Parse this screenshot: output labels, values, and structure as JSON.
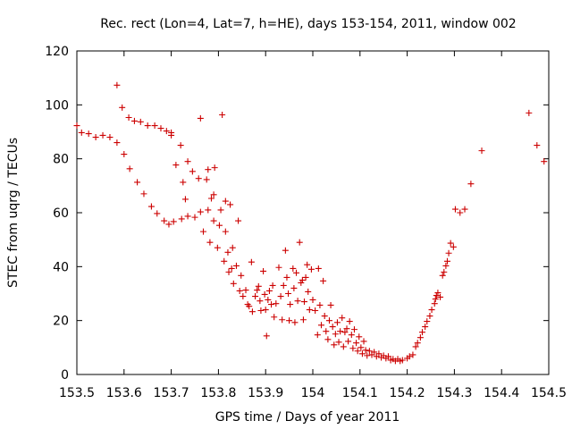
{
  "chart_data": {
    "type": "scatter",
    "title": "Rec. rect (Lon=4, Lat=7, h=HE), days 153-154, 2011, window 002",
    "xlabel": "GPS time / Days of year 2011",
    "ylabel": "STEC from uqrg / TECUs",
    "xlim": [
      153.5,
      154.5
    ],
    "ylim": [
      0,
      120
    ],
    "x_ticks": [
      153.5,
      153.6,
      153.7,
      153.8,
      153.9,
      154.0,
      154.1,
      154.2,
      154.3,
      154.4,
      154.5
    ],
    "x_tick_labels": [
      "153.5",
      "153.6",
      "153.7",
      "153.8",
      "153.9",
      "154",
      "154.1",
      "154.2",
      "154.3",
      "154.4",
      "154.5"
    ],
    "y_ticks": [
      0,
      20,
      40,
      60,
      80,
      100,
      120
    ],
    "y_tick_labels": [
      "0",
      "20",
      "40",
      "60",
      "80",
      "100",
      "120"
    ],
    "grid": false,
    "legend": "none",
    "marker": "+",
    "color": "#cc0000",
    "series": [
      {
        "points": [
          [
            153.5,
            92.3
          ],
          [
            153.51,
            89.7
          ],
          [
            153.525,
            89.3
          ],
          [
            153.54,
            88.0
          ],
          [
            153.555,
            88.7
          ],
          [
            153.57,
            88.0
          ],
          [
            153.585,
            86.0
          ],
          [
            153.6,
            81.7
          ],
          [
            153.612,
            76.3
          ],
          [
            153.628,
            71.3
          ],
          [
            153.642,
            67.0
          ],
          [
            153.658,
            62.3
          ],
          [
            153.67,
            59.7
          ],
          [
            153.685,
            57.0
          ],
          [
            153.695,
            55.7
          ],
          [
            153.705,
            56.7
          ],
          [
            153.722,
            57.7
          ],
          [
            153.735,
            58.7
          ],
          [
            153.75,
            58.3
          ],
          [
            153.762,
            60.3
          ],
          [
            153.778,
            61.0
          ],
          [
            153.79,
            57.0
          ],
          [
            153.802,
            55.3
          ],
          [
            153.815,
            53.0
          ],
          [
            153.585,
            107.3
          ],
          [
            153.596,
            99.0
          ],
          [
            153.61,
            95.3
          ],
          [
            153.622,
            94.0
          ],
          [
            153.635,
            93.7
          ],
          [
            153.65,
            92.3
          ],
          [
            153.665,
            92.3
          ],
          [
            153.678,
            91.3
          ],
          [
            153.69,
            90.3
          ],
          [
            153.7,
            88.7
          ],
          [
            153.7,
            89.7
          ],
          [
            153.71,
            77.7
          ],
          [
            153.72,
            85.0
          ],
          [
            153.725,
            71.3
          ],
          [
            153.73,
            65.0
          ],
          [
            153.735,
            79.0
          ],
          [
            153.745,
            75.3
          ],
          [
            153.758,
            72.7
          ],
          [
            153.762,
            95.0
          ],
          [
            153.768,
            53.0
          ],
          [
            153.775,
            72.3
          ],
          [
            153.778,
            76.0
          ],
          [
            153.782,
            49.0
          ],
          [
            153.785,
            65.3
          ],
          [
            153.79,
            66.7
          ],
          [
            153.792,
            76.7
          ],
          [
            153.798,
            47.0
          ],
          [
            153.805,
            61.0
          ],
          [
            153.808,
            96.3
          ],
          [
            153.812,
            42.0
          ],
          [
            153.815,
            64.3
          ],
          [
            153.82,
            45.3
          ],
          [
            153.822,
            38.0
          ],
          [
            153.825,
            63.0
          ],
          [
            153.828,
            39.3
          ],
          [
            153.83,
            47.0
          ],
          [
            153.832,
            33.7
          ],
          [
            153.838,
            40.3
          ],
          [
            153.842,
            57.0
          ],
          [
            153.845,
            31.0
          ],
          [
            153.848,
            36.7
          ],
          [
            153.852,
            29.0
          ],
          [
            153.858,
            31.3
          ],
          [
            153.862,
            26.0
          ],
          [
            153.865,
            25.3
          ],
          [
            153.87,
            41.7
          ],
          [
            153.872,
            23.3
          ],
          [
            153.878,
            29.0
          ],
          [
            153.882,
            31.3
          ],
          [
            153.885,
            32.7
          ],
          [
            153.888,
            27.3
          ],
          [
            153.89,
            23.7
          ],
          [
            153.895,
            38.3
          ],
          [
            153.898,
            29.7
          ],
          [
            153.9,
            24.0
          ],
          [
            153.902,
            14.3
          ],
          [
            153.905,
            27.7
          ],
          [
            153.908,
            31.0
          ],
          [
            153.912,
            26.0
          ],
          [
            153.915,
            33.0
          ],
          [
            153.918,
            21.3
          ],
          [
            153.922,
            26.3
          ],
          [
            153.928,
            39.7
          ],
          [
            153.932,
            29.0
          ],
          [
            153.935,
            20.3
          ],
          [
            153.938,
            33.0
          ],
          [
            153.942,
            46.0
          ],
          [
            153.945,
            36.0
          ],
          [
            153.948,
            30.0
          ],
          [
            153.95,
            20.0
          ],
          [
            153.952,
            26.0
          ],
          [
            153.958,
            39.3
          ],
          [
            153.96,
            32.0
          ],
          [
            153.962,
            19.3
          ],
          [
            153.965,
            37.7
          ],
          [
            153.968,
            27.3
          ],
          [
            153.972,
            49.0
          ],
          [
            153.975,
            34.0
          ],
          [
            153.978,
            35.0
          ],
          [
            153.98,
            20.3
          ],
          [
            153.982,
            27.0
          ],
          [
            153.985,
            36.0
          ],
          [
            153.988,
            40.7
          ],
          [
            153.99,
            30.7
          ],
          [
            153.993,
            24.0
          ],
          [
            153.997,
            39.0
          ],
          [
            154.0,
            27.7
          ],
          [
            154.005,
            23.7
          ],
          [
            154.01,
            14.7
          ],
          [
            154.012,
            39.3
          ],
          [
            154.015,
            25.7
          ],
          [
            154.018,
            18.3
          ],
          [
            154.022,
            34.7
          ],
          [
            154.025,
            21.7
          ],
          [
            154.028,
            16.0
          ],
          [
            154.032,
            13.0
          ],
          [
            154.035,
            20.0
          ],
          [
            154.038,
            25.7
          ],
          [
            154.042,
            17.7
          ],
          [
            154.045,
            11.0
          ],
          [
            154.048,
            15.0
          ],
          [
            154.052,
            19.3
          ],
          [
            154.055,
            12.0
          ],
          [
            154.058,
            16.0
          ],
          [
            154.062,
            21.0
          ],
          [
            154.065,
            10.3
          ],
          [
            154.068,
            15.7
          ],
          [
            154.072,
            17.0
          ],
          [
            154.075,
            12.3
          ],
          [
            154.078,
            19.7
          ],
          [
            154.082,
            14.7
          ],
          [
            154.085,
            9.7
          ],
          [
            154.088,
            16.7
          ],
          [
            154.092,
            11.7
          ],
          [
            154.095,
            8.7
          ],
          [
            154.098,
            14.0
          ],
          [
            154.102,
            10.0
          ],
          [
            154.105,
            7.7
          ],
          [
            154.108,
            12.3
          ],
          [
            154.112,
            9.0
          ],
          [
            154.115,
            7.0
          ],
          [
            154.12,
            8.7
          ],
          [
            154.125,
            7.3
          ],
          [
            154.13,
            8.3
          ],
          [
            154.135,
            6.7
          ],
          [
            154.14,
            7.7
          ],
          [
            154.145,
            6.3
          ],
          [
            154.15,
            7.0
          ],
          [
            154.155,
            6.0
          ],
          [
            154.16,
            6.7
          ],
          [
            154.165,
            5.3
          ],
          [
            154.17,
            5.7
          ],
          [
            154.175,
            5.0
          ],
          [
            154.18,
            5.7
          ],
          [
            154.185,
            5.0
          ],
          [
            154.19,
            5.3
          ],
          [
            154.2,
            6.0
          ],
          [
            154.205,
            6.7
          ],
          [
            154.212,
            7.3
          ],
          [
            154.218,
            10.3
          ],
          [
            154.222,
            11.7
          ],
          [
            154.228,
            13.7
          ],
          [
            154.232,
            15.7
          ],
          [
            154.238,
            17.7
          ],
          [
            154.242,
            19.7
          ],
          [
            154.248,
            21.7
          ],
          [
            154.252,
            24.0
          ],
          [
            154.258,
            26.3
          ],
          [
            154.26,
            28.0
          ],
          [
            154.262,
            29.3
          ],
          [
            154.265,
            30.3
          ],
          [
            154.27,
            28.7
          ],
          [
            154.275,
            36.7
          ],
          [
            154.278,
            38.0
          ],
          [
            154.282,
            40.3
          ],
          [
            154.285,
            42.0
          ],
          [
            154.288,
            45.0
          ],
          [
            154.292,
            48.7
          ],
          [
            154.298,
            47.3
          ],
          [
            154.302,
            61.3
          ],
          [
            154.312,
            60.0
          ],
          [
            154.322,
            61.3
          ],
          [
            154.335,
            70.7
          ],
          [
            154.358,
            83.0
          ],
          [
            154.458,
            97.0
          ],
          [
            154.475,
            85.0
          ],
          [
            154.49,
            79.0
          ]
        ]
      }
    ]
  }
}
